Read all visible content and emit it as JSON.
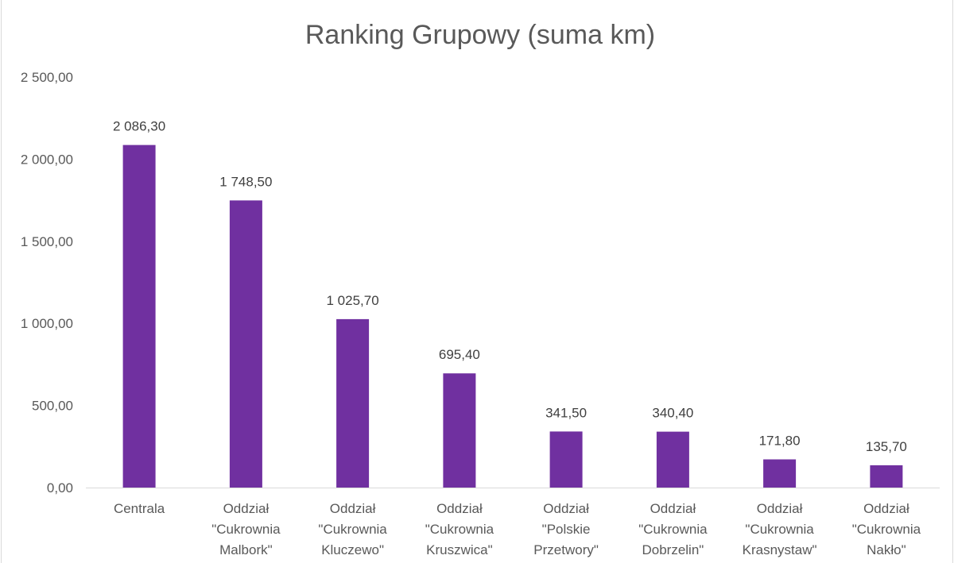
{
  "chart_data": {
    "type": "bar",
    "title": "Ranking Grupowy (suma km)",
    "xlabel": "",
    "ylabel": "",
    "ylim": [
      0,
      2500
    ],
    "y_ticks": [
      0,
      500,
      1000,
      1500,
      2000,
      2500
    ],
    "y_tick_labels": [
      "0,00",
      "500,00",
      "1 000,00",
      "1 500,00",
      "2 000,00",
      "2 500,00"
    ],
    "grid": false,
    "legend": "none",
    "bar_color": "#7030a0",
    "categories": [
      "Centrala",
      "Oddział \"Cukrownia Malbork\"",
      "Oddział \"Cukrownia Kluczewo\"",
      "Oddział \"Cukrownia Kruszwica\"",
      "Oddział \"Polskie Przetwory\"",
      "Oddział \"Cukrownia Dobrzelin\"",
      "Oddział \"Cukrownia Krasnystaw\"",
      "Oddział \"Cukrownia Nakło\""
    ],
    "category_lines": [
      [
        "Centrala"
      ],
      [
        "Oddział",
        "\"Cukrownia",
        "Malbork\""
      ],
      [
        "Oddział",
        "\"Cukrownia",
        "Kluczewo\""
      ],
      [
        "Oddział",
        "\"Cukrownia",
        "Kruszwica\""
      ],
      [
        "Oddział",
        "\"Polskie",
        "Przetwory\""
      ],
      [
        "Oddział",
        "\"Cukrownia",
        "Dobrzelin\""
      ],
      [
        "Oddział",
        "\"Cukrownia",
        "Krasnystaw\""
      ],
      [
        "Oddział",
        "\"Cukrownia",
        "Nakło\""
      ]
    ],
    "values": [
      2086.3,
      1748.5,
      1025.7,
      695.4,
      341.5,
      340.4,
      171.8,
      135.7
    ],
    "data_labels": [
      "2 086,30",
      "1 748,50",
      "1 025,70",
      "695,40",
      "341,50",
      "340,40",
      "171,80",
      "135,70"
    ]
  }
}
